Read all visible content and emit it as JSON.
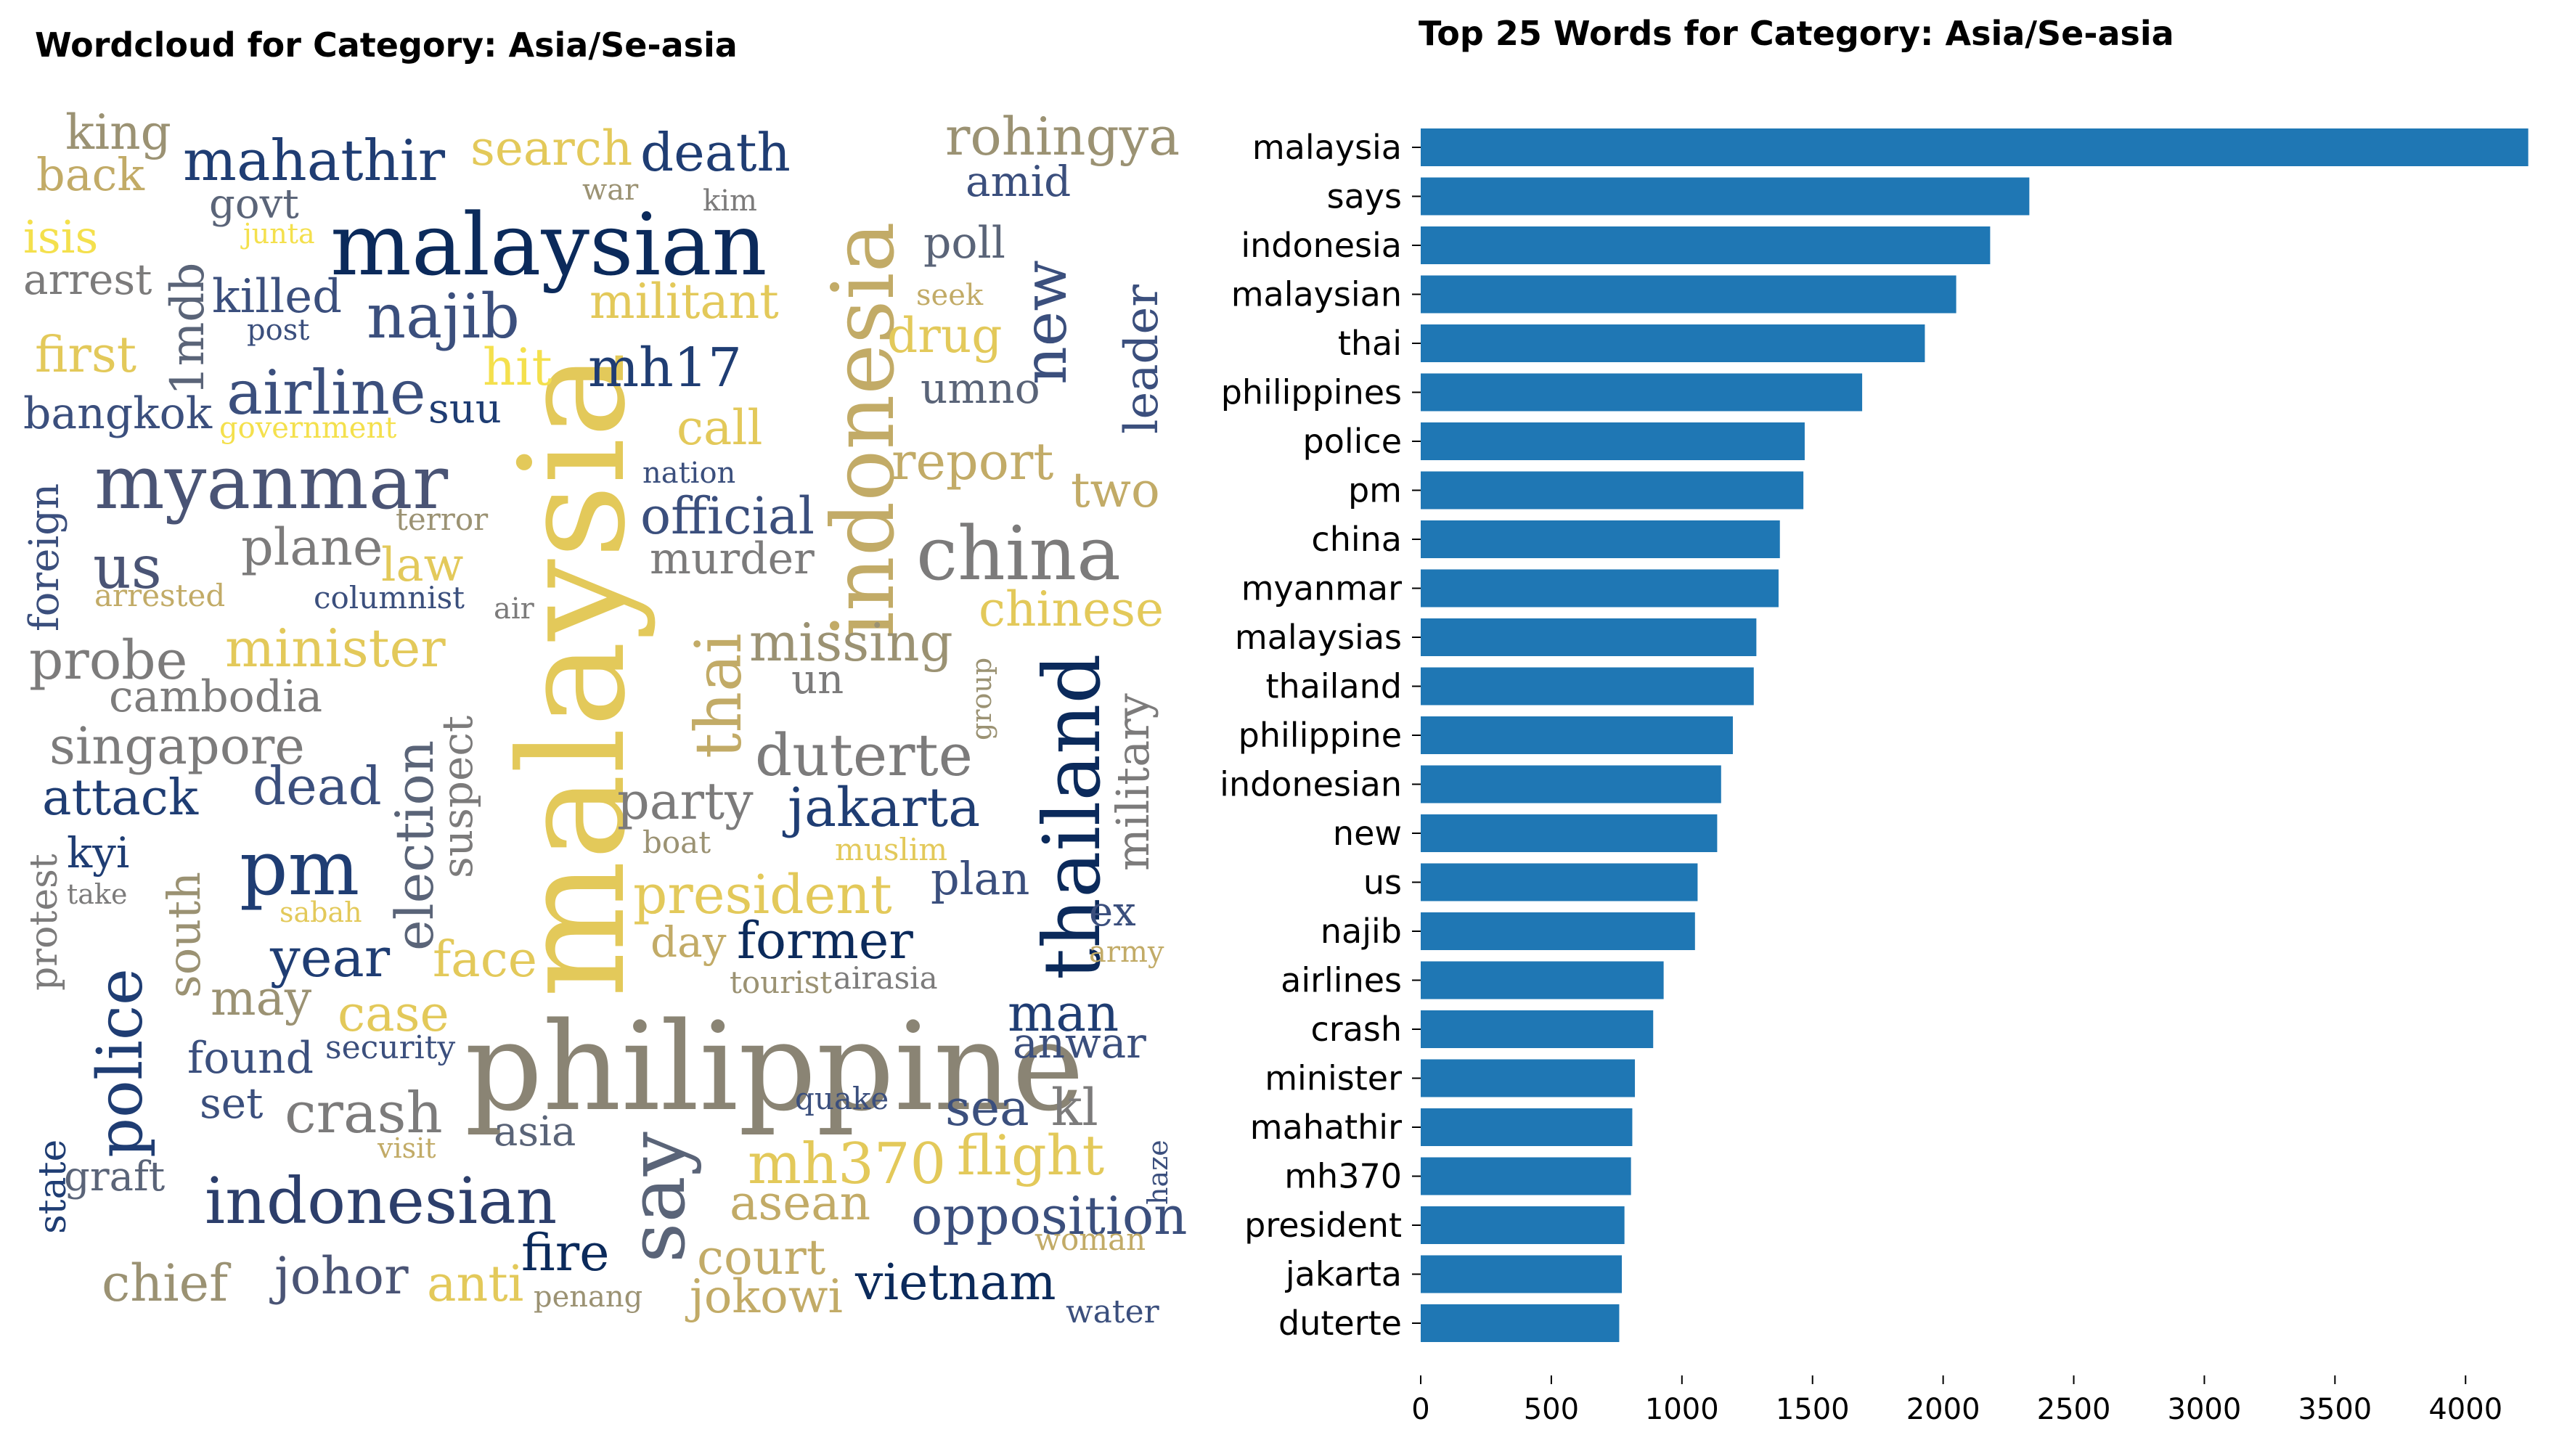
{
  "chart_data": [
    {
      "type": "wordcloud",
      "title": "Wordcloud for Category: Asia/Se-asia",
      "palette": [
        "#0b2a5b",
        "#1f3d73",
        "#3b4f7d",
        "#5a6478",
        "#7c7b7b",
        "#9b9273",
        "#c2ab67",
        "#e3c95a",
        "#f4e04d"
      ],
      "words": [
        {
          "text": "malaysia",
          "color": "#e3c95a",
          "orientation": "vertical"
        },
        {
          "text": "philippine",
          "color": "#8a8474",
          "orientation": "horizontal"
        },
        {
          "text": "malaysian",
          "color": "#0b2a5b",
          "orientation": "horizontal"
        },
        {
          "text": "indonesia",
          "color": "#c2ab67",
          "orientation": "vertical"
        },
        {
          "text": "thailand",
          "color": "#0b2a5b",
          "orientation": "vertical"
        },
        {
          "text": "myanmar",
          "color": "#4a5475",
          "orientation": "horizontal"
        },
        {
          "text": "china",
          "color": "#7c7b7b",
          "orientation": "horizontal"
        },
        {
          "text": "indonesian",
          "color": "#2c3e6b",
          "orientation": "horizontal"
        },
        {
          "text": "say",
          "color": "#5a6478",
          "orientation": "vertical"
        },
        {
          "text": "police",
          "color": "#1f3d73",
          "orientation": "vertical"
        },
        {
          "text": "pm",
          "color": "#1f3d73",
          "orientation": "horizontal"
        },
        {
          "text": "thai",
          "color": "#c2ab67",
          "orientation": "vertical"
        },
        {
          "text": "najib",
          "color": "#3b4f7d",
          "orientation": "horizontal"
        },
        {
          "text": "mahathir",
          "color": "#1f3d73",
          "orientation": "horizontal"
        },
        {
          "text": "airline",
          "color": "#3b4f7d",
          "orientation": "horizontal"
        },
        {
          "text": "new",
          "color": "#3b4f7d",
          "orientation": "vertical"
        },
        {
          "text": "duterte",
          "color": "#7c7b7b",
          "orientation": "horizontal"
        },
        {
          "text": "jakarta",
          "color": "#1f3d73",
          "orientation": "horizontal"
        },
        {
          "text": "president",
          "color": "#e3c95a",
          "orientation": "horizontal"
        },
        {
          "text": "mh370",
          "color": "#e3c95a",
          "orientation": "horizontal"
        },
        {
          "text": "opposition",
          "color": "#3b4f7d",
          "orientation": "horizontal"
        },
        {
          "text": "vietnam",
          "color": "#0b2a5b",
          "orientation": "horizontal"
        },
        {
          "text": "minister",
          "color": "#e3c95a",
          "orientation": "horizontal"
        },
        {
          "text": "crash",
          "color": "#7c7b7b",
          "orientation": "horizontal"
        },
        {
          "text": "missing",
          "color": "#9b9273",
          "orientation": "horizontal"
        },
        {
          "text": "flight",
          "color": "#e3c95a",
          "orientation": "horizontal"
        },
        {
          "text": "election",
          "color": "#5a6478",
          "orientation": "vertical"
        },
        {
          "text": "mh17",
          "color": "#1f3d73",
          "orientation": "horizontal"
        },
        {
          "text": "rohingya",
          "color": "#9b9273",
          "orientation": "horizontal"
        },
        {
          "text": "death",
          "color": "#1f3d73",
          "orientation": "horizontal"
        },
        {
          "text": "militant",
          "color": "#e3c95a",
          "orientation": "horizontal"
        },
        {
          "text": "drug",
          "color": "#e3c95a",
          "orientation": "horizontal"
        },
        {
          "text": "leader",
          "color": "#3b4f7d",
          "orientation": "vertical"
        },
        {
          "text": "official",
          "color": "#3b4f7d",
          "orientation": "horizontal"
        },
        {
          "text": "report",
          "color": "#c2ab67",
          "orientation": "horizontal"
        },
        {
          "text": "chinese",
          "color": "#e3c95a",
          "orientation": "horizontal"
        },
        {
          "text": "military",
          "color": "#7c7b7b",
          "orientation": "vertical"
        },
        {
          "text": "singapore",
          "color": "#7c7b7b",
          "orientation": "horizontal"
        },
        {
          "text": "probe",
          "color": "#7c7b7b",
          "orientation": "horizontal"
        },
        {
          "text": "us",
          "color": "#4a5475",
          "orientation": "horizontal"
        },
        {
          "text": "plane",
          "color": "#7c7b7b",
          "orientation": "horizontal"
        },
        {
          "text": "search",
          "color": "#e3c95a",
          "orientation": "horizontal"
        },
        {
          "text": "king",
          "color": "#9b9273",
          "orientation": "horizontal"
        },
        {
          "text": "back",
          "color": "#c2ab67",
          "orientation": "horizontal"
        },
        {
          "text": "isis",
          "color": "#f4e04d",
          "orientation": "horizontal"
        },
        {
          "text": "arrest",
          "color": "#7c7b7b",
          "orientation": "horizontal"
        },
        {
          "text": "first",
          "color": "#e3c95a",
          "orientation": "horizontal"
        },
        {
          "text": "bangkok",
          "color": "#3b4f7d",
          "orientation": "horizontal"
        },
        {
          "text": "govt",
          "color": "#5a6478",
          "orientation": "horizontal"
        },
        {
          "text": "killed",
          "color": "#3b4f7d",
          "orientation": "horizontal"
        },
        {
          "text": "1mdb",
          "color": "#5a6478",
          "orientation": "vertical"
        },
        {
          "text": "hit",
          "color": "#f4e04d",
          "orientation": "horizontal"
        },
        {
          "text": "call",
          "color": "#e3c95a",
          "orientation": "horizontal"
        },
        {
          "text": "umno",
          "color": "#5a6478",
          "orientation": "horizontal"
        },
        {
          "text": "poll",
          "color": "#5a6478",
          "orientation": "horizontal"
        },
        {
          "text": "amid",
          "color": "#3b4f7d",
          "orientation": "horizontal"
        },
        {
          "text": "two",
          "color": "#c2ab67",
          "orientation": "horizontal"
        },
        {
          "text": "murder",
          "color": "#7c7b7b",
          "orientation": "horizontal"
        },
        {
          "text": "law",
          "color": "#e3c95a",
          "orientation": "horizontal"
        },
        {
          "text": "cambodia",
          "color": "#7c7b7b",
          "orientation": "horizontal"
        },
        {
          "text": "attack",
          "color": "#1f3d73",
          "orientation": "horizontal"
        },
        {
          "text": "dead",
          "color": "#3b4f7d",
          "orientation": "horizontal"
        },
        {
          "text": "kyi",
          "color": "#1f3d73",
          "orientation": "horizontal"
        },
        {
          "text": "year",
          "color": "#1f3d73",
          "orientation": "horizontal"
        },
        {
          "text": "face",
          "color": "#e3c95a",
          "orientation": "horizontal"
        },
        {
          "text": "may",
          "color": "#9b9273",
          "orientation": "horizontal"
        },
        {
          "text": "case",
          "color": "#e3c95a",
          "orientation": "horizontal"
        },
        {
          "text": "found",
          "color": "#3b4f7d",
          "orientation": "horizontal"
        },
        {
          "text": "set",
          "color": "#3b4f7d",
          "orientation": "horizontal"
        },
        {
          "text": "south",
          "color": "#9b9273",
          "orientation": "vertical"
        },
        {
          "text": "suspect",
          "color": "#7c7b7b",
          "orientation": "vertical"
        },
        {
          "text": "party",
          "color": "#7c7b7b",
          "orientation": "horizontal"
        },
        {
          "text": "plan",
          "color": "#3b4f7d",
          "orientation": "horizontal"
        },
        {
          "text": "former",
          "color": "#0b2a5b",
          "orientation": "horizontal"
        },
        {
          "text": "day",
          "color": "#c2ab67",
          "orientation": "horizontal"
        },
        {
          "text": "man",
          "color": "#1f3d73",
          "orientation": "horizontal"
        },
        {
          "text": "anwar",
          "color": "#3b4f7d",
          "orientation": "horizontal"
        },
        {
          "text": "sea",
          "color": "#3b4f7d",
          "orientation": "horizontal"
        },
        {
          "text": "kl",
          "color": "#7c7b7b",
          "orientation": "horizontal"
        },
        {
          "text": "asean",
          "color": "#c2ab67",
          "orientation": "horizontal"
        },
        {
          "text": "court",
          "color": "#c2ab67",
          "orientation": "horizontal"
        },
        {
          "text": "jokowi",
          "color": "#c2ab67",
          "orientation": "horizontal"
        },
        {
          "text": "fire",
          "color": "#0b2a5b",
          "orientation": "horizontal"
        },
        {
          "text": "johor",
          "color": "#4a5475",
          "orientation": "horizontal"
        },
        {
          "text": "anti",
          "color": "#e3c95a",
          "orientation": "horizontal"
        },
        {
          "text": "chief",
          "color": "#9b9273",
          "orientation": "horizontal"
        },
        {
          "text": "graft",
          "color": "#5a6478",
          "orientation": "horizontal"
        },
        {
          "text": "state",
          "color": "#1f3d73",
          "orientation": "vertical"
        },
        {
          "text": "protest",
          "color": "#7c7b7b",
          "orientation": "vertical"
        },
        {
          "text": "foreign",
          "color": "#3b4f7d",
          "orientation": "vertical"
        },
        {
          "text": "asia",
          "color": "#5a6478",
          "orientation": "horizontal"
        },
        {
          "text": "un",
          "color": "#7c7b7b",
          "orientation": "horizontal"
        },
        {
          "text": "ex",
          "color": "#3b4f7d",
          "orientation": "horizontal"
        },
        {
          "text": "war",
          "color": "#9b9273",
          "orientation": "horizontal"
        },
        {
          "text": "kim",
          "color": "#7c7b7b",
          "orientation": "horizontal"
        },
        {
          "text": "junta",
          "color": "#f4e04d",
          "orientation": "horizontal"
        },
        {
          "text": "post",
          "color": "#3b4f7d",
          "orientation": "horizontal"
        },
        {
          "text": "seek",
          "color": "#c2ab67",
          "orientation": "horizontal"
        },
        {
          "text": "government",
          "color": "#f4e04d",
          "orientation": "horizontal"
        },
        {
          "text": "suu",
          "color": "#1f3d73",
          "orientation": "horizontal"
        },
        {
          "text": "nation",
          "color": "#3b4f7d",
          "orientation": "horizontal"
        },
        {
          "text": "terror",
          "color": "#9b9273",
          "orientation": "horizontal"
        },
        {
          "text": "arrested",
          "color": "#c2ab67",
          "orientation": "horizontal"
        },
        {
          "text": "columnist",
          "color": "#3b4f7d",
          "orientation": "horizontal"
        },
        {
          "text": "air",
          "color": "#7c7b7b",
          "orientation": "horizontal"
        },
        {
          "text": "group",
          "color": "#9b9273",
          "orientation": "vertical"
        },
        {
          "text": "boat",
          "color": "#9b9273",
          "orientation": "horizontal"
        },
        {
          "text": "muslim",
          "color": "#e3c95a",
          "orientation": "horizontal"
        },
        {
          "text": "take",
          "color": "#7c7b7b",
          "orientation": "horizontal"
        },
        {
          "text": "sabah",
          "color": "#e3c95a",
          "orientation": "horizontal"
        },
        {
          "text": "army",
          "color": "#c2ab67",
          "orientation": "horizontal"
        },
        {
          "text": "tourist",
          "color": "#9b9273",
          "orientation": "horizontal"
        },
        {
          "text": "airasia",
          "color": "#7c7b7b",
          "orientation": "horizontal"
        },
        {
          "text": "security",
          "color": "#3b4f7d",
          "orientation": "horizontal"
        },
        {
          "text": "quake",
          "color": "#3b4f7d",
          "orientation": "horizontal"
        },
        {
          "text": "visit",
          "color": "#c2ab67",
          "orientation": "horizontal"
        },
        {
          "text": "haze",
          "color": "#3b4f7d",
          "orientation": "vertical"
        },
        {
          "text": "woman",
          "color": "#c2ab67",
          "orientation": "horizontal"
        },
        {
          "text": "penang",
          "color": "#9b9273",
          "orientation": "horizontal"
        },
        {
          "text": "water",
          "color": "#3b4f7d",
          "orientation": "horizontal"
        }
      ]
    },
    {
      "type": "bar",
      "orientation": "horizontal",
      "title": "Top 25 Words for Category: Asia/Se-asia",
      "categories": [
        "malaysia",
        "says",
        "indonesia",
        "malaysian",
        "thai",
        "philippines",
        "police",
        "pm",
        "china",
        "myanmar",
        "malaysias",
        "thailand",
        "philippine",
        "indonesian",
        "new",
        "us",
        "najib",
        "airlines",
        "crash",
        "minister",
        "mahathir",
        "mh370",
        "president",
        "jakarta",
        "duterte"
      ],
      "values": [
        4240,
        2330,
        2180,
        2050,
        1930,
        1690,
        1470,
        1465,
        1375,
        1370,
        1285,
        1275,
        1195,
        1150,
        1135,
        1060,
        1050,
        930,
        890,
        820,
        810,
        805,
        780,
        770,
        760
      ],
      "xticks": [
        0,
        500,
        1000,
        1500,
        2000,
        2500,
        3000,
        3500,
        4000
      ],
      "xlim": [
        0,
        4280
      ],
      "bar_color": "#1f77b4",
      "grid": false,
      "xlabel": "",
      "ylabel": ""
    }
  ]
}
